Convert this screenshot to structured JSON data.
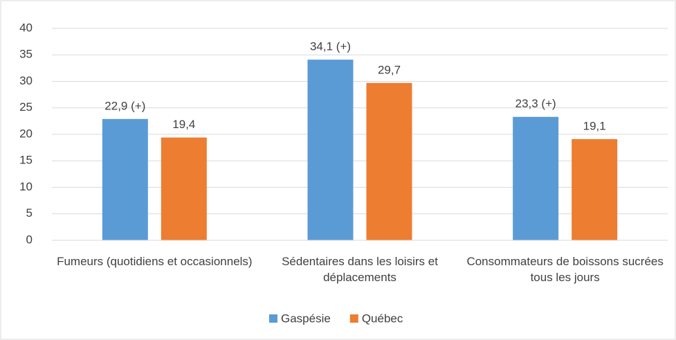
{
  "chart_data": {
    "type": "bar",
    "categories": [
      "Fumeurs (quotidiens et occasionnels)",
      "Sédentaires dans les loisirs et déplacements",
      "Consommateurs de boissons sucrées tous les jours"
    ],
    "series": [
      {
        "name": "Gaspésie",
        "color": "#5b9bd5",
        "values": [
          22.9,
          34.1,
          23.3
        ],
        "value_labels": [
          "22,9 (+)",
          "34,1 (+)",
          "23,3 (+)"
        ]
      },
      {
        "name": "Québec",
        "color": "#ed7d31",
        "values": [
          19.4,
          29.7,
          19.1
        ],
        "value_labels": [
          "19,4",
          "29,7",
          "19,1"
        ]
      }
    ],
    "ylim": [
      0,
      40
    ],
    "yticks": [
      0,
      5,
      10,
      15,
      20,
      25,
      30,
      35,
      40
    ],
    "grid": true,
    "legend": "bottom"
  }
}
